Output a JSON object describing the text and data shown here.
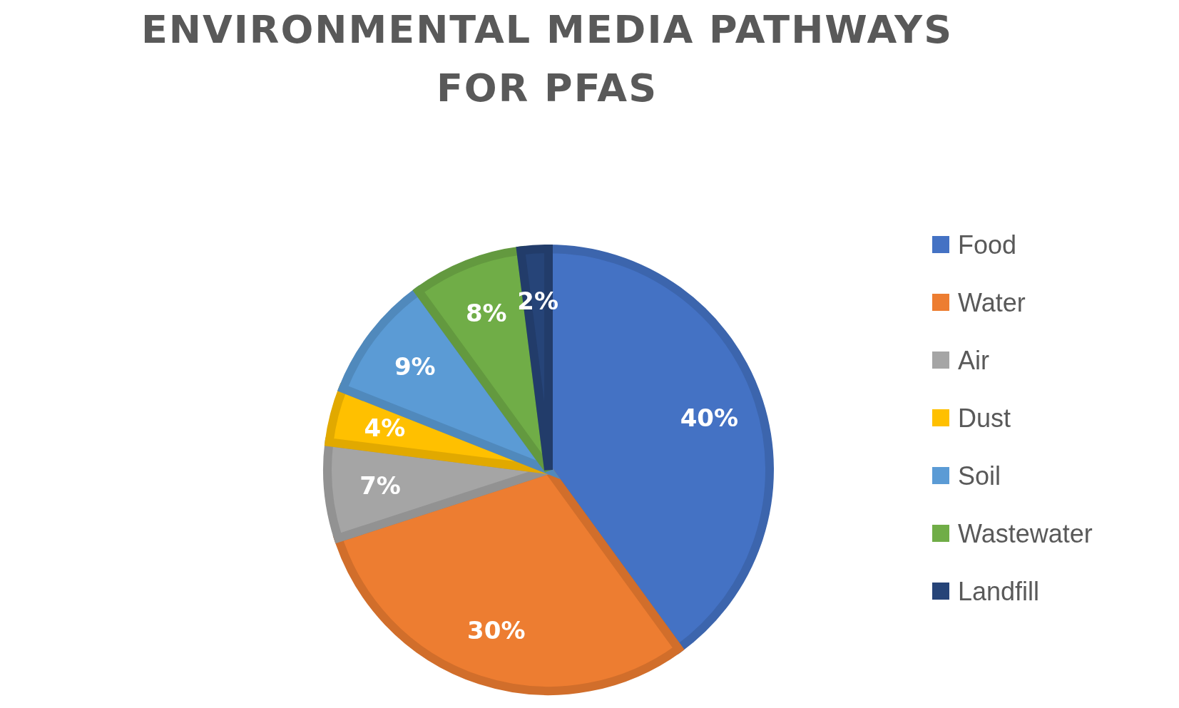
{
  "chart_data": {
    "type": "pie",
    "title": "ENVIRONMENTAL MEDIA PATHWAYS\nFOR PFAS",
    "categories": [
      "Food",
      "Water",
      "Air",
      "Dust",
      "Soil",
      "Wastewater",
      "Landfill"
    ],
    "values": [
      40,
      30,
      7,
      4,
      9,
      8,
      2
    ],
    "colors": [
      "#4472c4",
      "#ed7d31",
      "#a5a5a5",
      "#ffc000",
      "#5b9bd5",
      "#70ad47",
      "#264478"
    ],
    "value_labels": [
      "40%",
      "30%",
      "7%",
      "4%",
      "9%",
      "8%",
      "2%"
    ],
    "legend": "right"
  }
}
